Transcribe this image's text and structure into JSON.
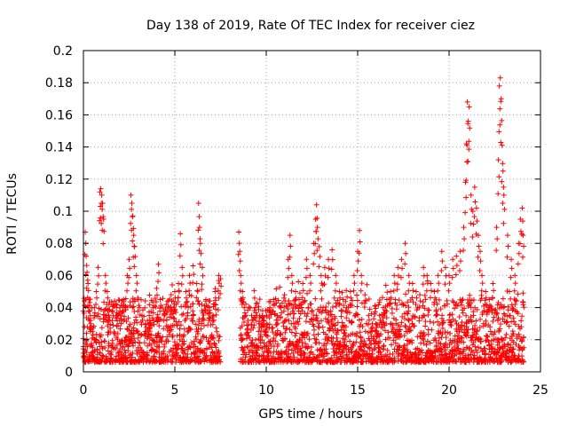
{
  "chart_data": {
    "type": "scatter",
    "title": "Day 138 of 2019, Rate Of TEC Index for receiver ciez",
    "xlabel": "GPS time / hours",
    "ylabel": "ROTI / TECUs",
    "xlim": [
      0,
      25
    ],
    "ylim": [
      0,
      0.2
    ],
    "xticks": [
      0,
      5,
      10,
      15,
      20,
      25
    ],
    "xtick_labels": [
      "0",
      "5",
      "10",
      "15",
      "20",
      "25"
    ],
    "yticks": [
      0,
      0.02,
      0.04,
      0.06,
      0.08,
      0.1,
      0.12,
      0.14,
      0.16,
      0.18,
      0.2
    ],
    "ytick_labels": [
      "0",
      "0.02",
      "0.04",
      "0.06",
      "0.08",
      "0.1",
      "0.12",
      "0.14",
      "0.16",
      "0.18",
      "0.2"
    ],
    "grid": true,
    "marker": "+",
    "color": "#ff0000",
    "series": [
      {
        "name": "ROTI",
        "points": [
          [
            0.05,
            0.01
          ],
          [
            0.1,
            0.087
          ],
          [
            0.15,
            0.072
          ],
          [
            0.2,
            0.062
          ],
          [
            0.25,
            0.055
          ],
          [
            0.3,
            0.045
          ],
          [
            0.35,
            0.038
          ],
          [
            0.4,
            0.03
          ],
          [
            0.5,
            0.025
          ],
          [
            0.6,
            0.04
          ],
          [
            0.7,
            0.05
          ],
          [
            0.8,
            0.065
          ],
          [
            0.9,
            0.112
          ],
          [
            0.95,
            0.114
          ],
          [
            1.0,
            0.11
          ],
          [
            1.05,
            0.105
          ],
          [
            1.1,
            0.095
          ],
          [
            1.2,
            0.06
          ],
          [
            1.3,
            0.05
          ],
          [
            1.4,
            0.042
          ],
          [
            1.6,
            0.038
          ],
          [
            1.8,
            0.04
          ],
          [
            2.0,
            0.038
          ],
          [
            2.2,
            0.045
          ],
          [
            2.4,
            0.06
          ],
          [
            2.5,
            0.07
          ],
          [
            2.6,
            0.11
          ],
          [
            2.65,
            0.105
          ],
          [
            2.7,
            0.097
          ],
          [
            2.75,
            0.085
          ],
          [
            2.8,
            0.078
          ],
          [
            2.9,
            0.06
          ],
          [
            3.0,
            0.045
          ],
          [
            3.2,
            0.035
          ],
          [
            3.4,
            0.03
          ],
          [
            3.6,
            0.035
          ],
          [
            3.8,
            0.04
          ],
          [
            4.0,
            0.052
          ],
          [
            4.1,
            0.067
          ],
          [
            4.2,
            0.045
          ],
          [
            4.4,
            0.038
          ],
          [
            4.6,
            0.044
          ],
          [
            4.8,
            0.048
          ],
          [
            5.0,
            0.05
          ],
          [
            5.2,
            0.055
          ],
          [
            5.3,
            0.086
          ],
          [
            5.4,
            0.065
          ],
          [
            5.6,
            0.05
          ],
          [
            5.8,
            0.06
          ],
          [
            6.0,
            0.066
          ],
          [
            6.2,
            0.055
          ],
          [
            6.3,
            0.105
          ],
          [
            6.35,
            0.09
          ],
          [
            6.4,
            0.08
          ],
          [
            6.5,
            0.065
          ],
          [
            6.7,
            0.045
          ],
          [
            6.9,
            0.04
          ],
          [
            7.1,
            0.035
          ],
          [
            7.2,
            0.05
          ],
          [
            7.4,
            0.06
          ],
          [
            7.5,
            0.058
          ],
          [
            8.5,
            0.087
          ],
          [
            8.55,
            0.075
          ],
          [
            8.6,
            0.06
          ],
          [
            8.7,
            0.05
          ],
          [
            8.8,
            0.04
          ],
          [
            9.0,
            0.032
          ],
          [
            9.2,
            0.035
          ],
          [
            9.4,
            0.04
          ],
          [
            9.6,
            0.03
          ],
          [
            9.8,
            0.035
          ],
          [
            10.0,
            0.03
          ],
          [
            10.2,
            0.04
          ],
          [
            10.4,
            0.045
          ],
          [
            10.6,
            0.035
          ],
          [
            10.8,
            0.04
          ],
          [
            11.0,
            0.048
          ],
          [
            11.2,
            0.07
          ],
          [
            11.3,
            0.085
          ],
          [
            11.4,
            0.06
          ],
          [
            11.6,
            0.05
          ],
          [
            11.8,
            0.045
          ],
          [
            12.0,
            0.055
          ],
          [
            12.2,
            0.07
          ],
          [
            12.4,
            0.06
          ],
          [
            12.6,
            0.08
          ],
          [
            12.7,
            0.095
          ],
          [
            12.75,
            0.104
          ],
          [
            12.8,
            0.09
          ],
          [
            12.9,
            0.078
          ],
          [
            13.0,
            0.06
          ],
          [
            13.2,
            0.065
          ],
          [
            13.4,
            0.07
          ],
          [
            13.6,
            0.076
          ],
          [
            13.8,
            0.06
          ],
          [
            14.0,
            0.05
          ],
          [
            14.2,
            0.045
          ],
          [
            14.4,
            0.04
          ],
          [
            14.6,
            0.05
          ],
          [
            14.8,
            0.06
          ],
          [
            15.0,
            0.075
          ],
          [
            15.1,
            0.088
          ],
          [
            15.2,
            0.06
          ],
          [
            15.4,
            0.048
          ],
          [
            15.6,
            0.035
          ],
          [
            15.8,
            0.03
          ],
          [
            16.0,
            0.03
          ],
          [
            16.2,
            0.035
          ],
          [
            16.4,
            0.04
          ],
          [
            16.6,
            0.045
          ],
          [
            16.8,
            0.05
          ],
          [
            17.0,
            0.06
          ],
          [
            17.2,
            0.065
          ],
          [
            17.4,
            0.07
          ],
          [
            17.6,
            0.08
          ],
          [
            17.8,
            0.06
          ],
          [
            18.0,
            0.055
          ],
          [
            18.2,
            0.05
          ],
          [
            18.4,
            0.048
          ],
          [
            18.6,
            0.065
          ],
          [
            18.8,
            0.06
          ],
          [
            19.0,
            0.055
          ],
          [
            19.2,
            0.05
          ],
          [
            19.4,
            0.06
          ],
          [
            19.6,
            0.075
          ],
          [
            19.8,
            0.065
          ],
          [
            20.0,
            0.06
          ],
          [
            20.2,
            0.07
          ],
          [
            20.4,
            0.072
          ],
          [
            20.6,
            0.075
          ],
          [
            20.8,
            0.09
          ],
          [
            20.9,
            0.118
          ],
          [
            20.95,
            0.142
          ],
          [
            21.0,
            0.168
          ],
          [
            21.05,
            0.156
          ],
          [
            21.1,
            0.165
          ],
          [
            21.2,
            0.11
          ],
          [
            21.3,
            0.1
          ],
          [
            21.4,
            0.115
          ],
          [
            21.5,
            0.102
          ],
          [
            21.6,
            0.085
          ],
          [
            21.7,
            0.075
          ],
          [
            21.8,
            0.06
          ],
          [
            22.0,
            0.05
          ],
          [
            22.2,
            0.045
          ],
          [
            22.4,
            0.055
          ],
          [
            22.6,
            0.09
          ],
          [
            22.7,
            0.132
          ],
          [
            22.75,
            0.178
          ],
          [
            22.8,
            0.183
          ],
          [
            22.85,
            0.17
          ],
          [
            22.9,
            0.141
          ],
          [
            22.95,
            0.125
          ],
          [
            23.0,
            0.11
          ],
          [
            23.2,
            0.085
          ],
          [
            23.4,
            0.07
          ],
          [
            23.6,
            0.06
          ],
          [
            23.8,
            0.08
          ],
          [
            23.9,
            0.095
          ],
          [
            24.0,
            0.102
          ],
          [
            24.05,
            0.085
          ]
        ]
      }
    ]
  }
}
